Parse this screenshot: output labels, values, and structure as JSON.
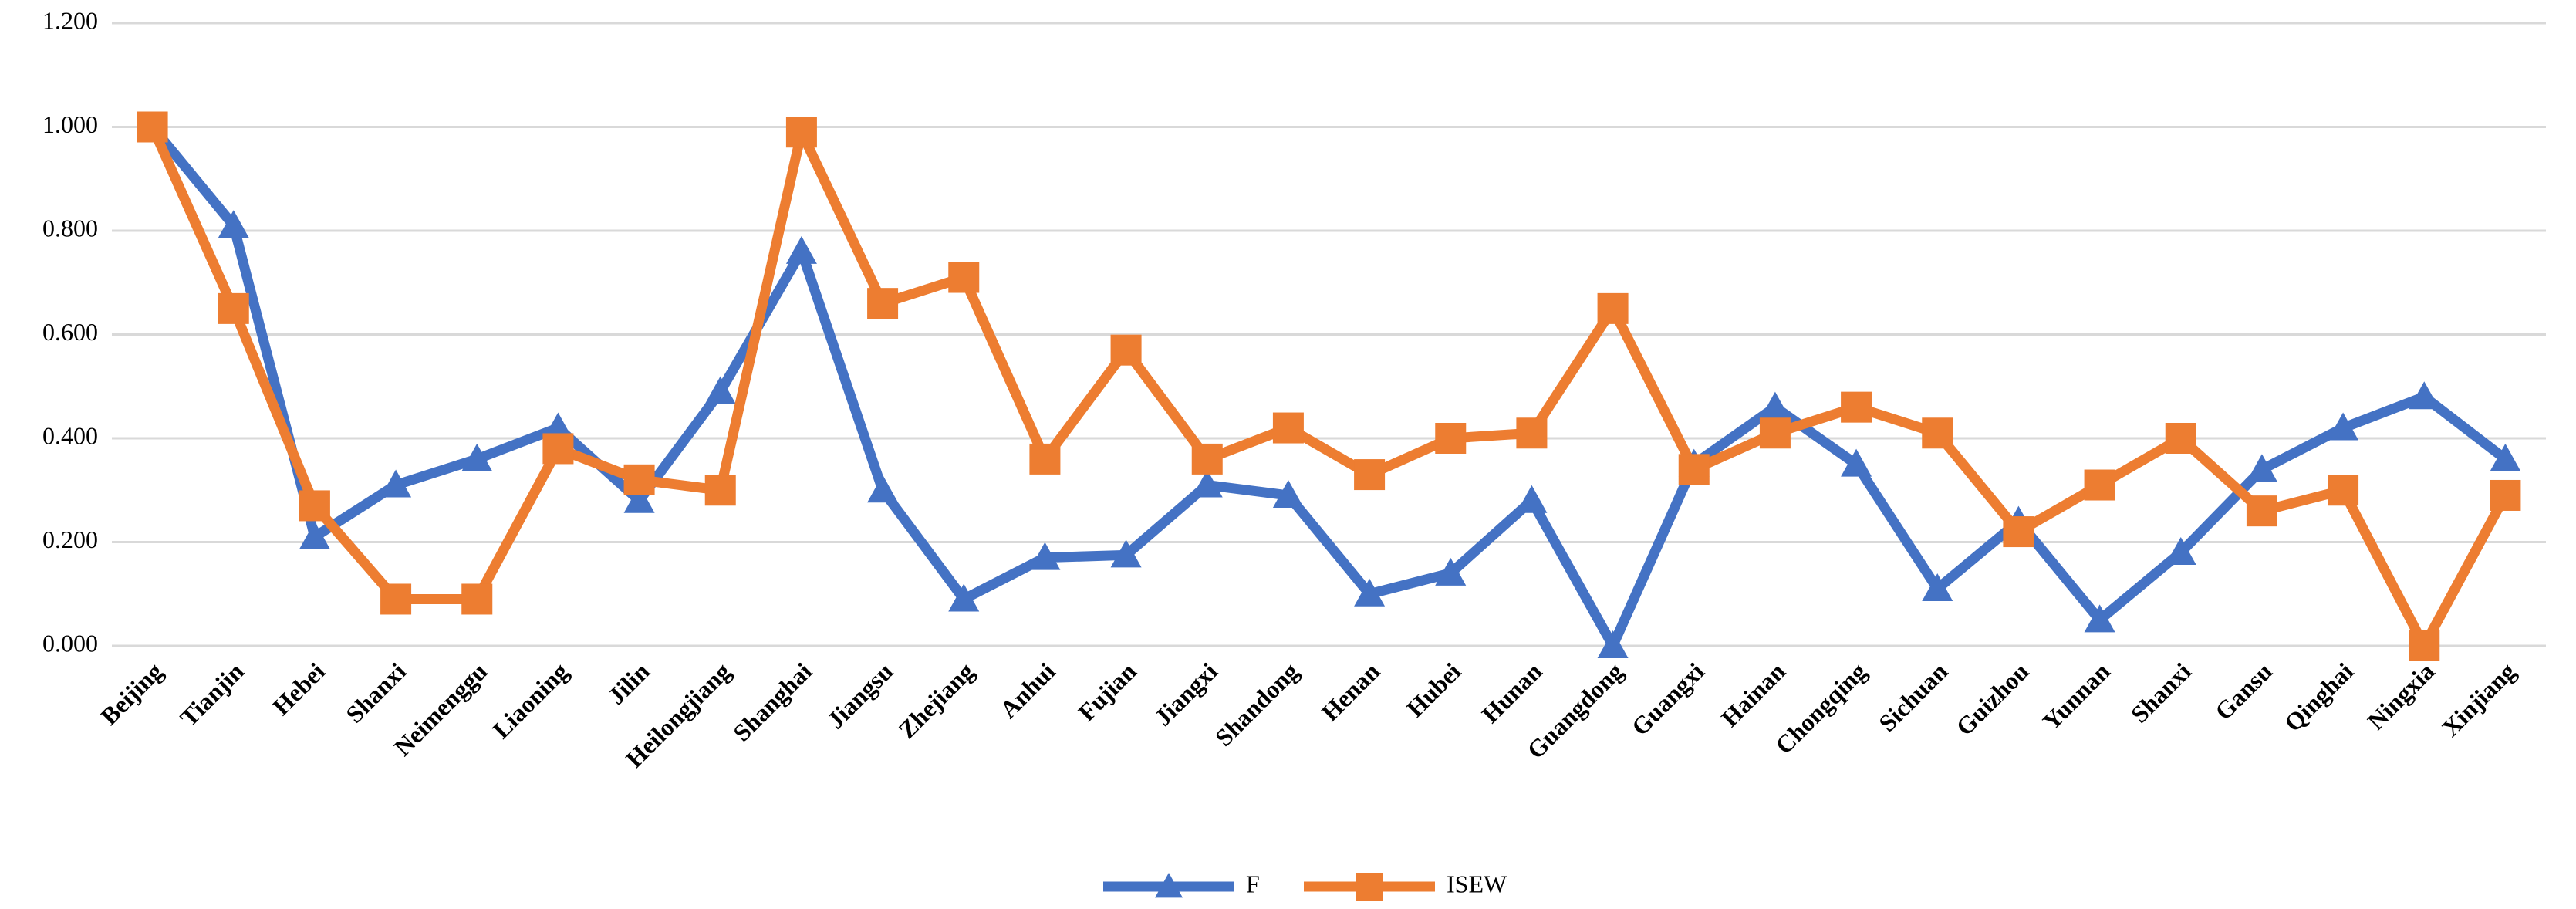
{
  "chart_data": {
    "type": "line",
    "categories": [
      "Beijing",
      "Tianjin",
      "Hebei",
      "Shanxi",
      "Neimenggu",
      "Liaoning",
      "Jilin",
      "Heilongjiang",
      "Shanghai",
      "Jiangsu",
      "Zhejiang",
      "Anhui",
      "Fujian",
      "Jiangxi",
      "Shandong",
      "Henan",
      "Hubei",
      "Hunan",
      "Guangdong",
      "Guangxi",
      "Hainan",
      "Chongqing",
      "Sichuan",
      "Guizhou",
      "Yunnan",
      "Shanxi",
      "Gansu",
      "Qinghai",
      "Ningxia",
      "Xinjiang"
    ],
    "series": [
      {
        "name": "F",
        "color": "#4472c4",
        "marker": "triangle",
        "values": [
          1.0,
          0.81,
          0.21,
          0.31,
          0.36,
          0.42,
          0.28,
          0.49,
          0.76,
          0.3,
          0.09,
          0.17,
          0.175,
          0.31,
          0.29,
          0.1,
          0.14,
          0.28,
          0.0,
          0.35,
          0.46,
          0.35,
          0.11,
          0.24,
          0.05,
          0.18,
          0.34,
          0.42,
          0.48,
          0.36
        ]
      },
      {
        "name": "ISEW",
        "color": "#ed7d31",
        "marker": "square",
        "values": [
          1.0,
          0.65,
          0.27,
          0.09,
          0.09,
          0.38,
          0.32,
          0.3,
          0.99,
          0.66,
          0.71,
          0.36,
          0.57,
          0.36,
          0.42,
          0.33,
          0.4,
          0.41,
          0.65,
          0.34,
          0.41,
          0.46,
          0.41,
          0.22,
          0.31,
          0.4,
          0.26,
          0.3,
          0.0,
          0.29
        ]
      }
    ],
    "ylim": [
      0,
      1.2
    ],
    "yticks": [
      {
        "value": 0,
        "label": "0.000"
      },
      {
        "value": 0.2,
        "label": "0.200"
      },
      {
        "value": 0.4,
        "label": "0.400"
      },
      {
        "value": 0.6,
        "label": "0.600"
      },
      {
        "value": 0.8,
        "label": "0.800"
      },
      {
        "value": 1.0,
        "label": "1.000"
      },
      {
        "value": 1.2,
        "label": "1.200"
      }
    ],
    "grid": true,
    "legend": "bottom"
  }
}
